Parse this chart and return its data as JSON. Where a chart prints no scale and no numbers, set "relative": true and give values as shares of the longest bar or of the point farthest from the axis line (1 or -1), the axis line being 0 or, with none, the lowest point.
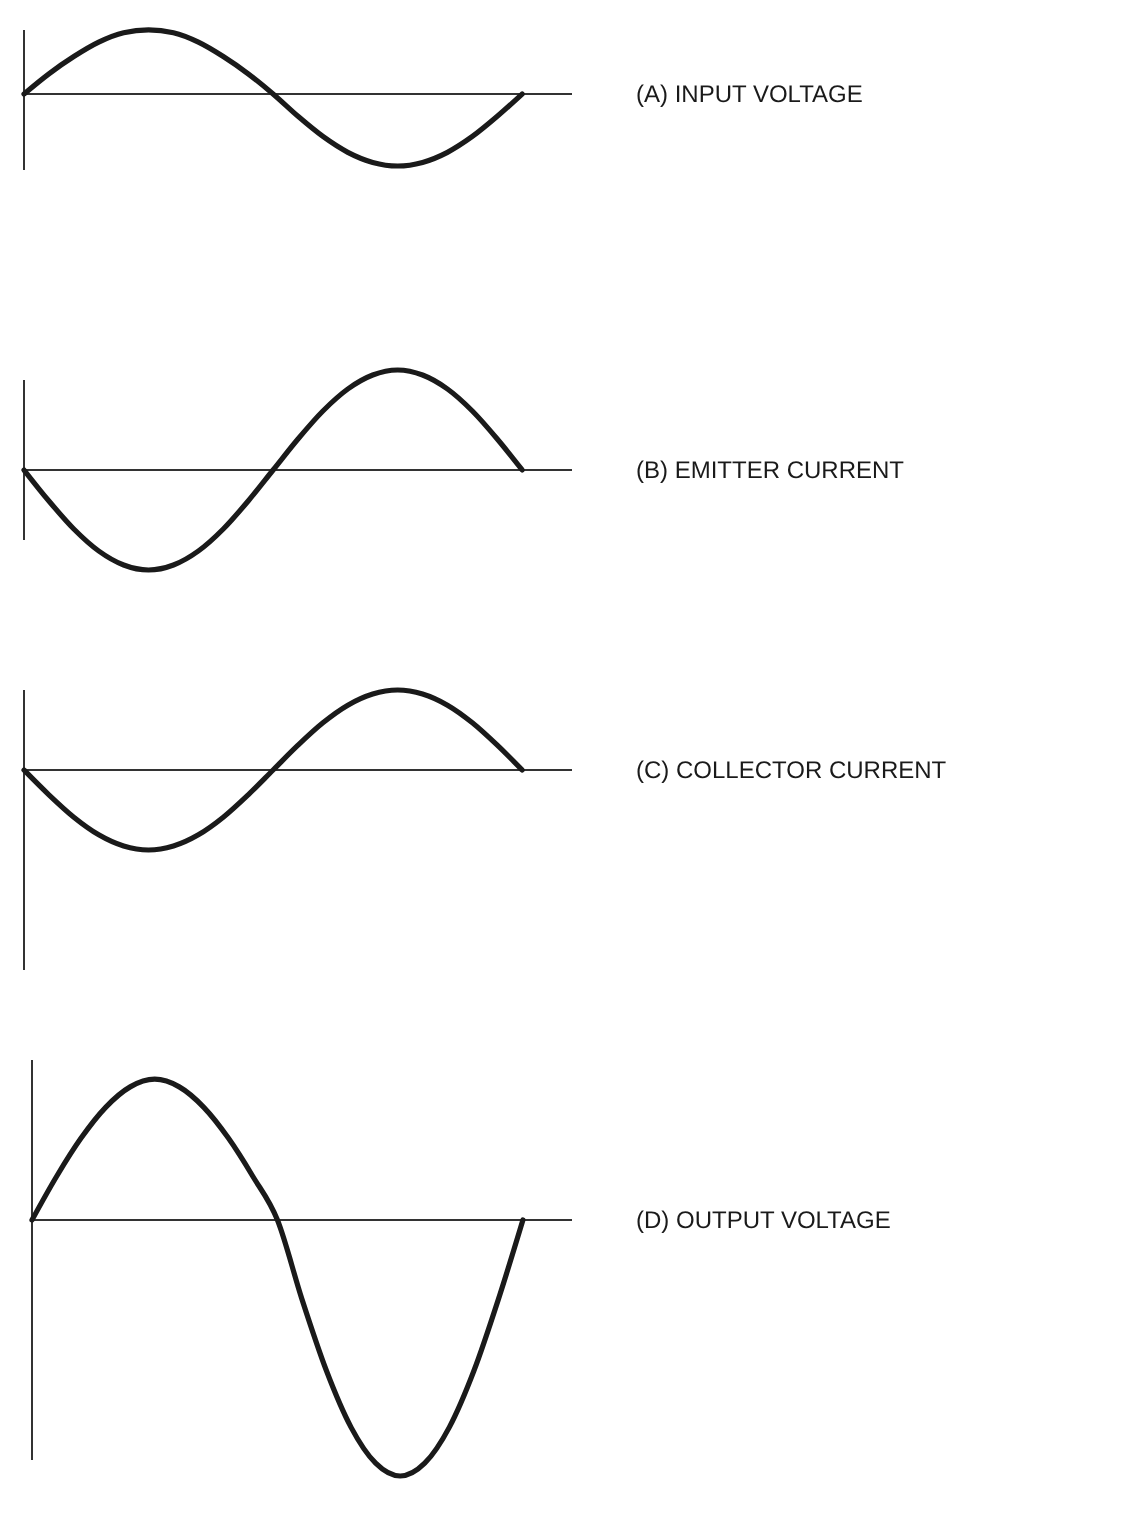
{
  "chart_data": [
    {
      "type": "line",
      "relative": true,
      "categories": [
        null,
        null,
        null,
        null,
        null,
        null,
        null,
        null,
        null,
        null,
        null,
        null,
        null,
        null,
        null,
        null,
        null,
        null,
        null,
        null,
        null,
        null,
        null
      ],
      "series": [
        {
          "name": "(A) INPUT VOLTAGE",
          "color": "#1a1a1a",
          "values": [
            0,
            0.28,
            0.52,
            0.72,
            0.85,
            0.89,
            0.85,
            0.72,
            0.52,
            0.28,
            0,
            -0.31,
            -0.59,
            -0.81,
            -0.95,
            -1,
            -0.95,
            -0.81,
            -0.59,
            -0.31,
            0,
            null,
            null
          ]
        }
      ]
    },
    {
      "type": "line",
      "relative": true,
      "categories": [
        null,
        null,
        null,
        null,
        null,
        null,
        null,
        null,
        null,
        null,
        null,
        null,
        null,
        null,
        null,
        null,
        null,
        null,
        null,
        null,
        null,
        null,
        null
      ],
      "series": [
        {
          "name": "(B) EMITTER CURRENT",
          "color": "#1a1a1a",
          "values": [
            0,
            -0.31,
            -0.59,
            -0.81,
            -0.95,
            -1,
            -0.95,
            -0.81,
            -0.59,
            -0.31,
            0,
            0.31,
            0.59,
            0.81,
            0.95,
            1,
            0.95,
            0.81,
            0.59,
            0.31,
            0,
            null,
            null
          ]
        }
      ]
    },
    {
      "type": "line",
      "relative": true,
      "categories": [
        null,
        null,
        null,
        null,
        null,
        null,
        null,
        null,
        null,
        null,
        null,
        null,
        null,
        null,
        null,
        null,
        null,
        null,
        null,
        null,
        null,
        null,
        null
      ],
      "series": [
        {
          "name": "(C) COLLECTOR CURRENT",
          "color": "#1a1a1a",
          "values": [
            0,
            -0.31,
            -0.59,
            -0.81,
            -0.95,
            -1,
            -0.95,
            -0.81,
            -0.59,
            -0.31,
            0,
            0.31,
            0.59,
            0.81,
            0.95,
            1,
            0.95,
            0.81,
            0.59,
            0.31,
            0,
            null,
            null
          ]
        }
      ]
    },
    {
      "type": "line",
      "relative": true,
      "categories": [
        null,
        null,
        null,
        null,
        null,
        null,
        null,
        null,
        null,
        null,
        null,
        null,
        null,
        null,
        null,
        null,
        null,
        null,
        null,
        null,
        null,
        null,
        null
      ],
      "series": [
        {
          "name": "(D) OUTPUT VOLTAGE",
          "color": "#1a1a1a",
          "values": [
            0,
            0.17,
            0.32,
            0.44,
            0.52,
            0.55,
            0.52,
            0.44,
            0.32,
            0.17,
            0,
            -0.31,
            -0.59,
            -0.81,
            -0.95,
            -1,
            -0.95,
            -0.81,
            -0.59,
            -0.31,
            0,
            null,
            null
          ]
        }
      ]
    }
  ]
}
